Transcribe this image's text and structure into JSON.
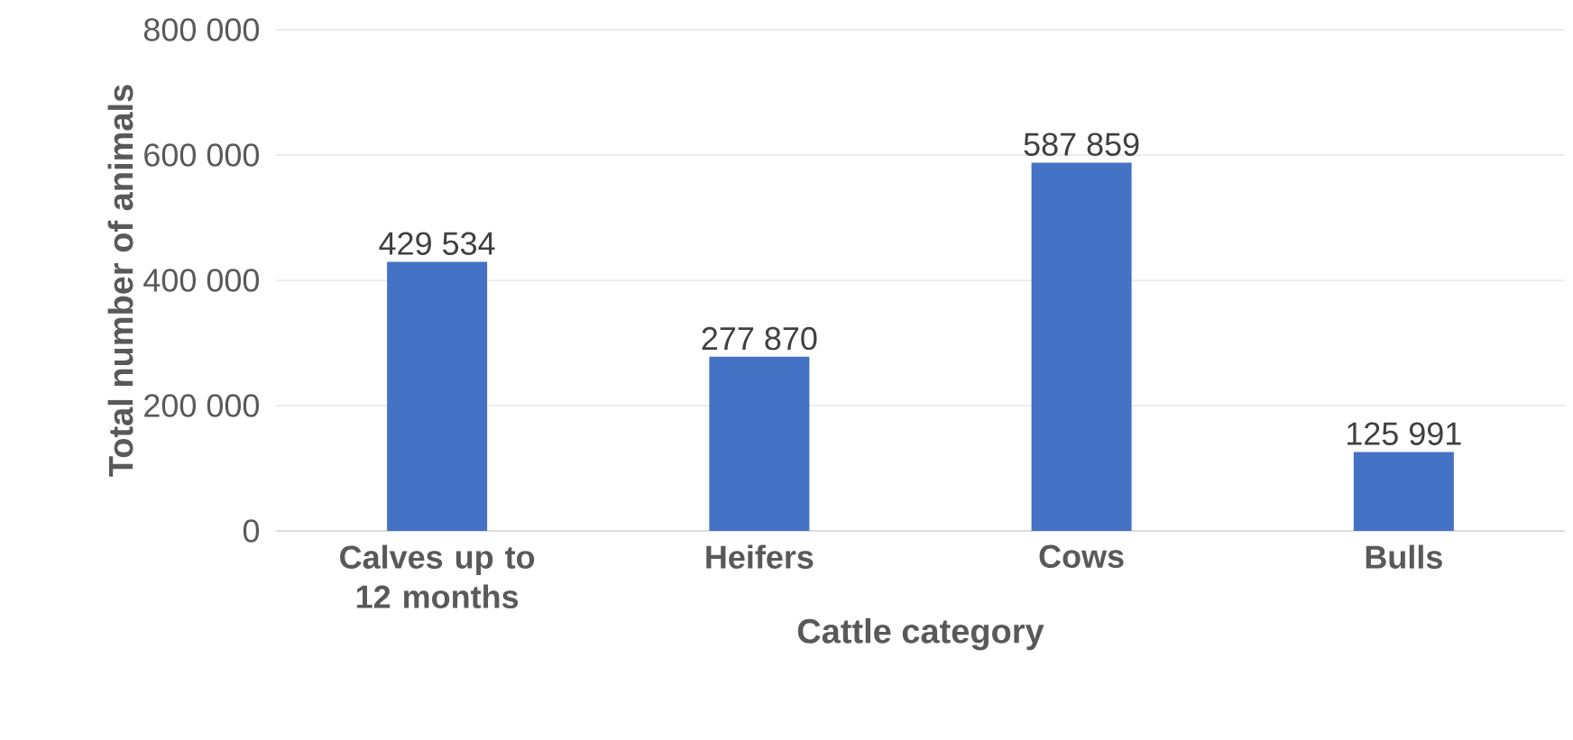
{
  "chart_data": {
    "type": "bar",
    "xlabel": "Cattle category",
    "ylabel": "Total number of animals",
    "categories": [
      "Calves up to 12 months",
      "Heifers",
      "Cows",
      "Bulls"
    ],
    "values": [
      429534,
      277870,
      587859,
      125991
    ],
    "value_labels": [
      "429 534",
      "277 870",
      "587 859",
      "125 991"
    ],
    "color": "#4472c4",
    "ylim": [
      0,
      800000
    ],
    "yticks": [
      {
        "value": 0,
        "label": "0"
      },
      {
        "value": 200000,
        "label": "200 000"
      },
      {
        "value": 400000,
        "label": "400 000"
      },
      {
        "value": 600000,
        "label": "600 000"
      },
      {
        "value": 800000,
        "label": "800 000"
      }
    ],
    "grid": "y"
  }
}
